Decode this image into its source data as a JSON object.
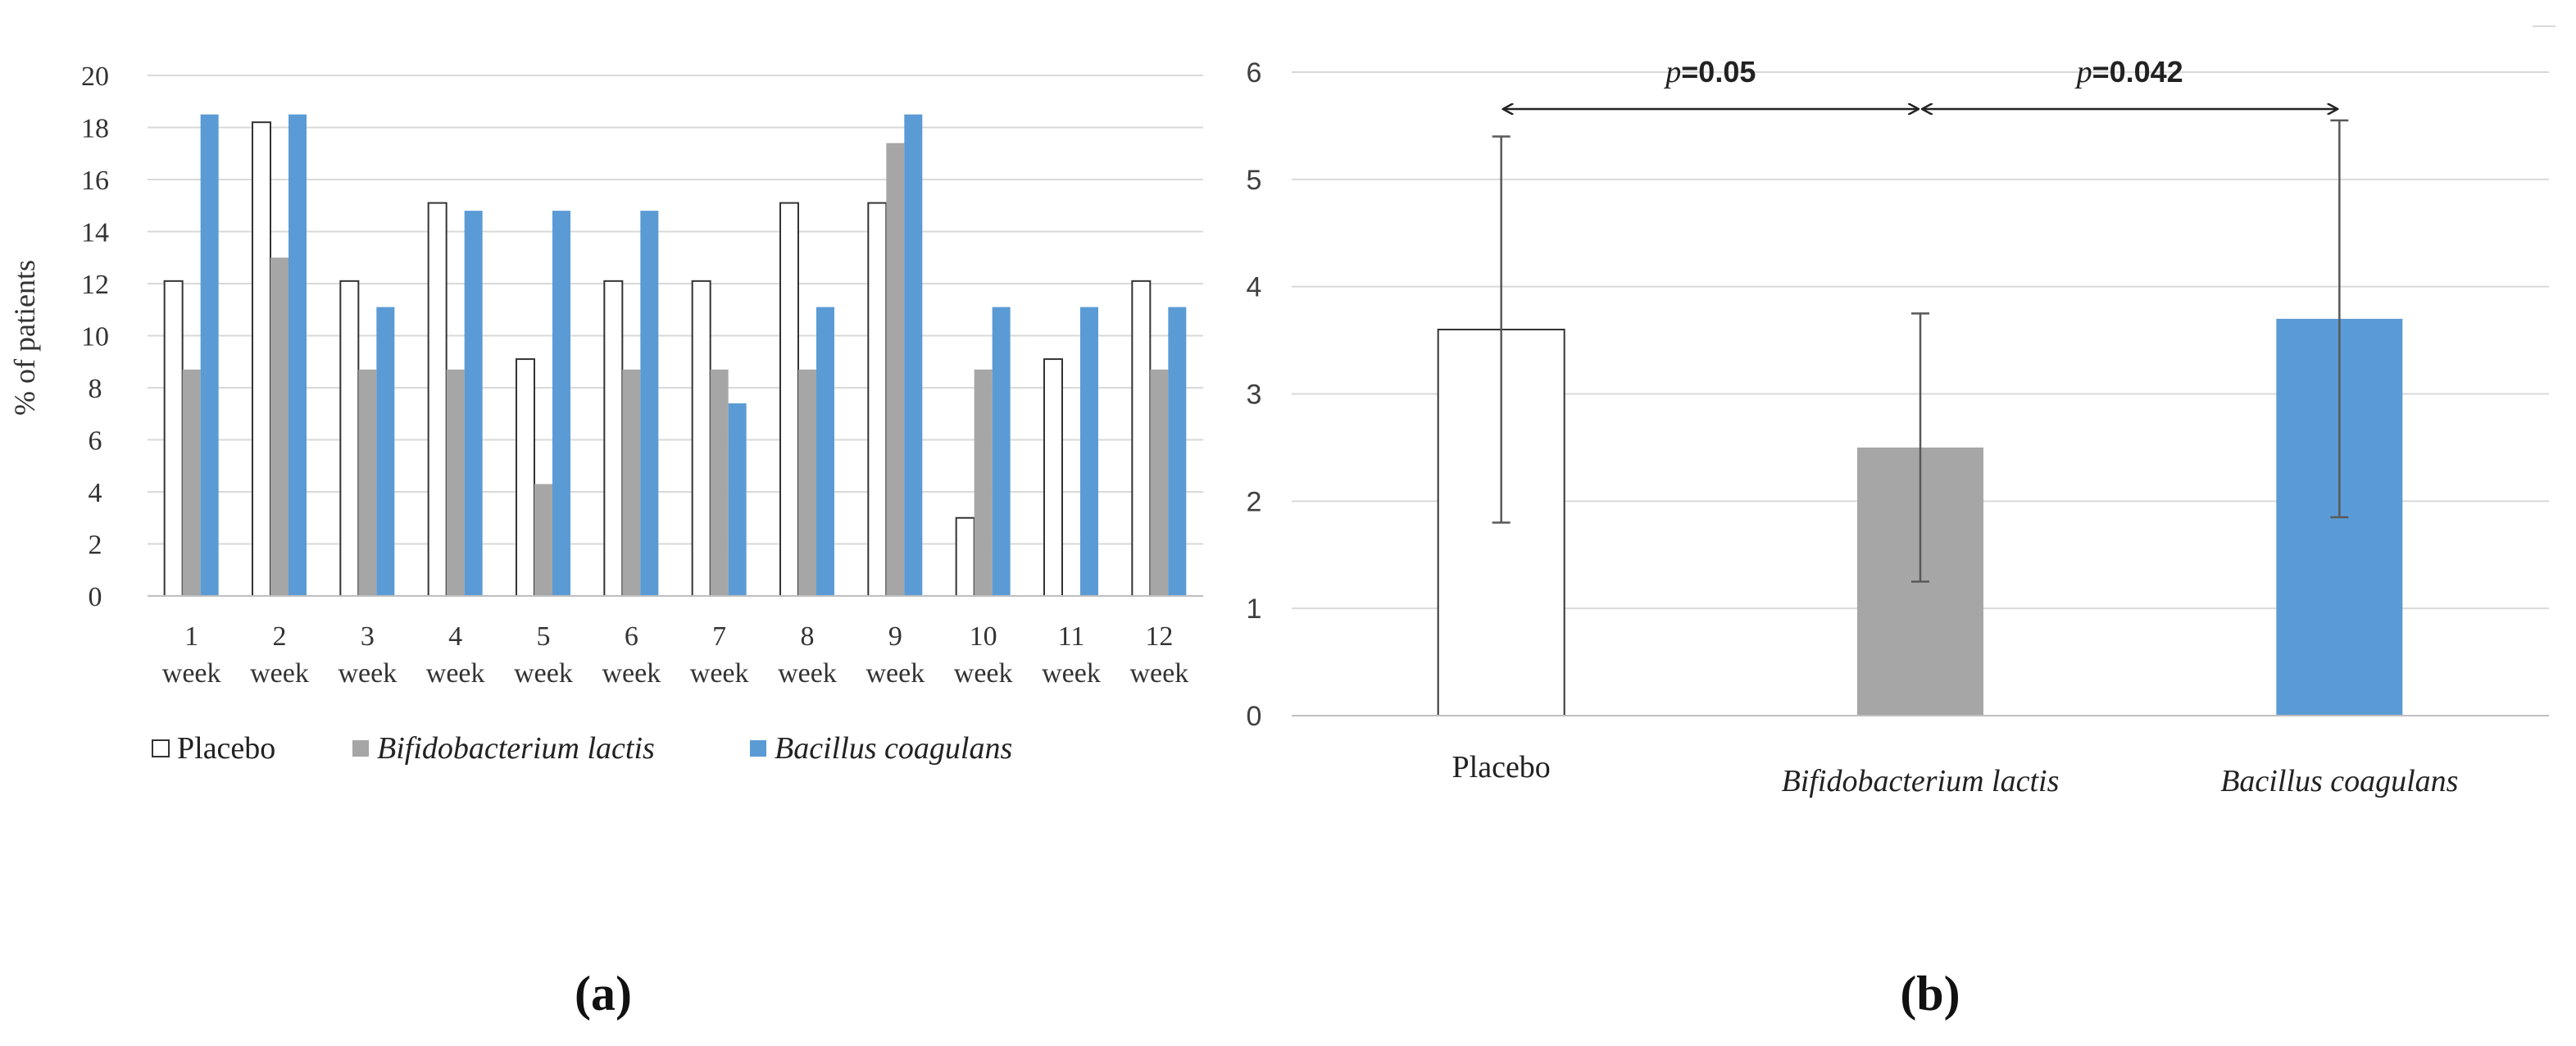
{
  "colors": {
    "placebo_fill": "#ffffff",
    "placebo_stroke": "#333333",
    "bifido": "#a6a6a6",
    "bacillus": "#5b9bd5",
    "grid": "#d9d9d9",
    "axis": "#bfbfbf",
    "error_bar": "#595959"
  },
  "chart_data": [
    {
      "type": "bar",
      "panel_label": "(a)",
      "title": "",
      "xlabel": "",
      "ylabel": "% of patients",
      "ylim": [
        0,
        20
      ],
      "ytick_step": 2,
      "grid": true,
      "legend_position": "bottom",
      "categories": [
        "1",
        "2",
        "3",
        "4",
        "5",
        "6",
        "7",
        "8",
        "9",
        "10",
        "11",
        "12"
      ],
      "category_suffix": "week",
      "series": [
        {
          "name": "Placebo",
          "name_style": "normal",
          "color_key": "placebo_fill",
          "values": [
            12.1,
            18.2,
            12.1,
            15.1,
            9.1,
            12.1,
            12.1,
            15.1,
            15.1,
            3.0,
            9.1,
            12.1
          ]
        },
        {
          "name": "Bifidobacterium lactis",
          "name_style": "italic",
          "color_key": "bifido",
          "values": [
            8.7,
            13.0,
            8.7,
            8.7,
            4.3,
            8.7,
            8.7,
            8.7,
            17.4,
            8.7,
            0,
            8.7
          ]
        },
        {
          "name": "Bacillus coagulans",
          "name_style": "italic",
          "color_key": "bacillus",
          "values": [
            18.5,
            18.5,
            11.1,
            14.8,
            14.8,
            14.8,
            7.4,
            11.1,
            18.5,
            11.1,
            11.1,
            11.1
          ]
        }
      ]
    },
    {
      "type": "bar",
      "panel_label": "(b)",
      "title": "",
      "xlabel": "",
      "ylabel": "",
      "ylim": [
        0,
        6
      ],
      "ytick_step": 1,
      "grid": true,
      "categories": [
        "Placebo",
        "Bifidobacterium lactis",
        "Bacillus coagulans"
      ],
      "category_styles": [
        "normal",
        "italic",
        "italic"
      ],
      "color_keys": [
        "placebo_fill",
        "bifido",
        "bacillus"
      ],
      "values": [
        3.6,
        2.5,
        3.7
      ],
      "error_low": [
        1.8,
        1.25,
        1.85
      ],
      "error_high": [
        5.4,
        3.75,
        5.55
      ],
      "comparisons": [
        {
          "from": 0,
          "to": 1,
          "label_italic": "p",
          "label_rest": "=0.05"
        },
        {
          "from": 1,
          "to": 2,
          "label_italic": "p",
          "label_rest": "=0.042"
        }
      ]
    }
  ]
}
